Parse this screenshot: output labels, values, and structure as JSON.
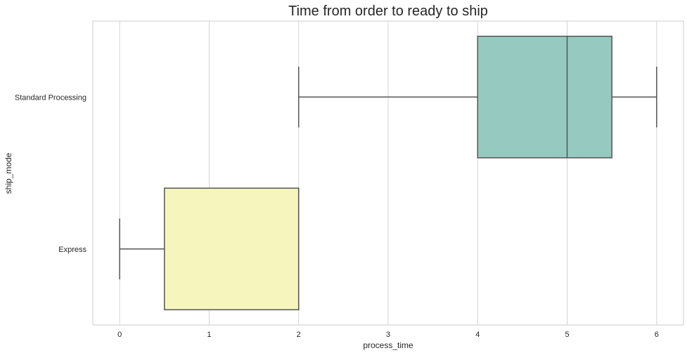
{
  "chart_data": {
    "type": "boxplot",
    "orientation": "horizontal",
    "title": "Time from order to ready to ship",
    "xlabel": "process_time",
    "ylabel": "ship_mode",
    "xlim": [
      -0.3,
      6.3
    ],
    "x_ticks": [
      0,
      1,
      2,
      3,
      4,
      5,
      6
    ],
    "x_tick_labels": [
      "0",
      "1",
      "2",
      "3",
      "4",
      "5",
      "6"
    ],
    "grid": "vertical",
    "categories": [
      "Standard Processing",
      "Express"
    ],
    "series": [
      {
        "category": "Standard Processing",
        "whisker_low": 2,
        "q1": 4,
        "median": 5,
        "q3": 5.5,
        "whisker_high": 6,
        "color": "#96c9bf"
      },
      {
        "category": "Express",
        "whisker_low": 0,
        "q1": 0.5,
        "median": 2,
        "q3": 2,
        "whisker_high": 2,
        "color": "#f5f5bd"
      }
    ]
  },
  "colors": {
    "box_edge": "#555555",
    "grid": "#d5d5d5",
    "frame": "#cccccc"
  }
}
